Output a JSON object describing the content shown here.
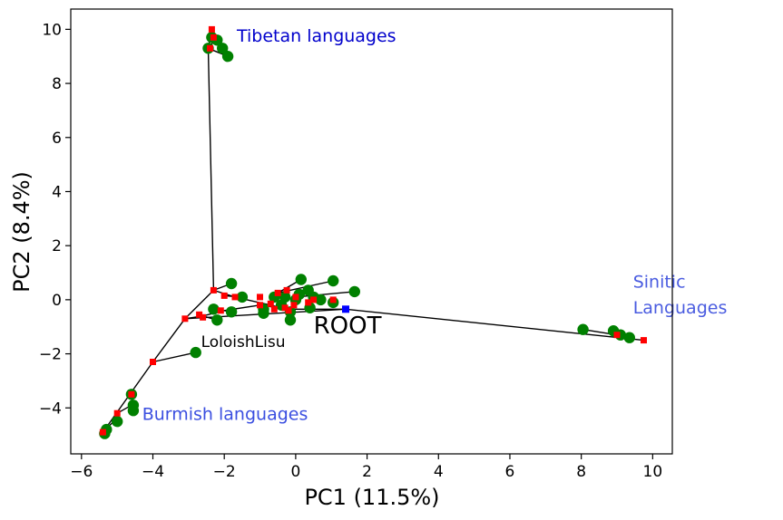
{
  "chart_data": {
    "type": "scatter",
    "title": "",
    "xlabel": "PC1 (11.5%)",
    "ylabel": "PC2 (8.4%)",
    "xlim": [
      -6.3,
      10.55
    ],
    "ylim": [
      -5.7,
      10.75
    ],
    "xticks": [
      -6,
      -4,
      -2,
      0,
      2,
      4,
      6,
      8,
      10
    ],
    "yticks": [
      -4,
      -2,
      0,
      2,
      4,
      6,
      8,
      10
    ],
    "xtick_labels": [
      "−6",
      "−4",
      "−2",
      "0",
      "2",
      "4",
      "6",
      "8",
      "10"
    ],
    "ytick_labels": [
      "−4",
      "−2",
      "0",
      "2",
      "4",
      "6",
      "8",
      "10"
    ],
    "grid": false,
    "colors": {
      "leaf": "#008000",
      "node": "#ff0000",
      "root": "#0000ff",
      "edge": "#000000"
    },
    "root": {
      "label": "ROOT",
      "x": 1.4,
      "y": -0.35
    },
    "internal_nodes": [
      {
        "x": -2.35,
        "y": 10.0
      },
      {
        "x": -2.3,
        "y": 9.7
      },
      {
        "x": -2.4,
        "y": 9.3
      },
      {
        "x": -2.3,
        "y": 0.35
      },
      {
        "x": -2.0,
        "y": 0.15
      },
      {
        "x": -1.7,
        "y": 0.1
      },
      {
        "x": -1.0,
        "y": 0.1
      },
      {
        "x": -0.5,
        "y": 0.25
      },
      {
        "x": -0.25,
        "y": 0.35
      },
      {
        "x": 0.0,
        "y": 0.1
      },
      {
        "x": 0.5,
        "y": 0.0
      },
      {
        "x": 1.05,
        "y": 0.0
      },
      {
        "x": -1.0,
        "y": -0.2
      },
      {
        "x": -0.7,
        "y": -0.15
      },
      {
        "x": -0.3,
        "y": -0.3
      },
      {
        "x": -0.05,
        "y": -0.2
      },
      {
        "x": 0.35,
        "y": -0.1
      },
      {
        "x": -0.6,
        "y": -0.35
      },
      {
        "x": -0.2,
        "y": -0.4
      },
      {
        "x": -2.7,
        "y": -0.55
      },
      {
        "x": -2.1,
        "y": -0.4
      },
      {
        "x": -3.1,
        "y": -0.7
      },
      {
        "x": -2.6,
        "y": -0.65
      },
      {
        "x": -4.0,
        "y": -2.3
      },
      {
        "x": -4.6,
        "y": -3.5
      },
      {
        "x": -5.0,
        "y": -4.2
      },
      {
        "x": -5.4,
        "y": -4.9
      },
      {
        "x": 9.0,
        "y": -1.3
      },
      {
        "x": 9.75,
        "y": -1.5
      }
    ],
    "edges": [
      [
        [
          -3.1,
          -0.7
        ],
        [
          1.4,
          -0.35
        ],
        [
          9.75,
          -1.5
        ]
      ],
      [
        [
          -2.45,
          9.3
        ],
        [
          -2.3,
          0.35
        ],
        [
          -1.7,
          0.1
        ],
        [
          -0.2,
          -0.35
        ],
        [
          1.4,
          -0.35
        ]
      ],
      [
        [
          -3.1,
          -0.7
        ],
        [
          -2.3,
          0.35
        ]
      ],
      [
        [
          -5.4,
          -4.9
        ],
        [
          -4.0,
          -2.3
        ],
        [
          -3.1,
          -0.7
        ]
      ],
      [
        [
          -4.0,
          -2.3
        ],
        [
          -2.8,
          -1.95
        ]
      ],
      [
        [
          -2.45,
          9.3
        ],
        [
          -2.35,
          10.0
        ]
      ],
      [
        [
          -2.45,
          9.3
        ],
        [
          -2.2,
          9.7
        ]
      ],
      [
        [
          -2.45,
          9.3
        ],
        [
          -1.9,
          9.0
        ]
      ],
      [
        [
          -2.3,
          0.35
        ],
        [
          -1.8,
          0.6
        ]
      ],
      [
        [
          -2.0,
          0.15
        ],
        [
          -1.5,
          0.1
        ]
      ],
      [
        [
          -3.1,
          -0.7
        ],
        [
          -2.6,
          -0.6
        ],
        [
          -2.0,
          -0.4
        ],
        [
          -1.0,
          -0.2
        ],
        [
          -0.2,
          -0.35
        ]
      ],
      [
        [
          -2.6,
          -0.6
        ],
        [
          -2.2,
          -0.75
        ]
      ],
      [
        [
          -2.0,
          -0.4
        ],
        [
          -1.8,
          -0.45
        ]
      ],
      [
        [
          -0.5,
          0.25
        ],
        [
          1.05,
          0.7
        ]
      ],
      [
        [
          -0.5,
          0.25
        ],
        [
          0.15,
          0.75
        ]
      ],
      [
        [
          0.0,
          0.1
        ],
        [
          1.65,
          0.3
        ]
      ],
      [
        [
          0.5,
          0.0
        ],
        [
          0.35,
          0.35
        ]
      ],
      [
        [
          -5.4,
          -4.9
        ],
        [
          -5.1,
          -4.5
        ]
      ],
      [
        [
          -5.0,
          -4.2
        ],
        [
          -4.6,
          -3.9
        ]
      ],
      [
        [
          -4.6,
          -3.5
        ],
        [
          -4.55,
          -4.1
        ]
      ],
      [
        [
          8.05,
          -1.1
        ],
        [
          9.0,
          -1.3
        ]
      ]
    ],
    "leaves": [
      {
        "x": -2.35,
        "y": 9.7
      },
      {
        "x": -2.2,
        "y": 9.6
      },
      {
        "x": -2.05,
        "y": 9.3
      },
      {
        "x": -1.9,
        "y": 9.0
      },
      {
        "x": -2.45,
        "y": 9.3
      },
      {
        "x": -1.8,
        "y": 0.6
      },
      {
        "x": -1.5,
        "y": 0.1
      },
      {
        "x": -2.3,
        "y": -0.35
      },
      {
        "x": -2.2,
        "y": -0.75
      },
      {
        "x": -1.8,
        "y": -0.45
      },
      {
        "x": -0.9,
        "y": -0.35
      },
      {
        "x": -0.9,
        "y": -0.5
      },
      {
        "x": -0.6,
        "y": 0.1
      },
      {
        "x": -0.4,
        "y": -0.2
      },
      {
        "x": -0.3,
        "y": 0.1
      },
      {
        "x": 0.0,
        "y": 0.0
      },
      {
        "x": 0.1,
        "y": 0.2
      },
      {
        "x": 0.15,
        "y": 0.75
      },
      {
        "x": 0.35,
        "y": 0.35
      },
      {
        "x": 0.5,
        "y": 0.1
      },
      {
        "x": 0.7,
        "y": 0.0
      },
      {
        "x": 1.05,
        "y": 0.7
      },
      {
        "x": 1.05,
        "y": -0.1
      },
      {
        "x": 1.65,
        "y": 0.3
      },
      {
        "x": -0.15,
        "y": -0.45
      },
      {
        "x": -0.15,
        "y": -0.75
      },
      {
        "x": 0.4,
        "y": -0.3
      },
      {
        "x": -2.8,
        "y": -1.95
      },
      {
        "x": -4.55,
        "y": -3.9
      },
      {
        "x": -4.55,
        "y": -4.1
      },
      {
        "x": -4.6,
        "y": -3.5
      },
      {
        "x": -5.0,
        "y": -4.5
      },
      {
        "x": -5.3,
        "y": -4.8
      },
      {
        "x": -5.35,
        "y": -4.95
      },
      {
        "x": 8.05,
        "y": -1.1
      },
      {
        "x": 8.9,
        "y": -1.15
      },
      {
        "x": 9.1,
        "y": -1.3
      },
      {
        "x": 9.35,
        "y": -1.4
      }
    ],
    "annotations": [
      {
        "text": "Tibetan languages",
        "x": -1.65,
        "y": 9.55,
        "color": "#0000cc",
        "size": 19
      },
      {
        "text": "Sinitic",
        "x": 9.45,
        "y": 0.45,
        "color": "#4a5ce0",
        "size": 19
      },
      {
        "text": "Languages",
        "x": 9.45,
        "y": -0.5,
        "color": "#4a5ce0",
        "size": 19
      },
      {
        "text": "ROOT",
        "x": 0.5,
        "y": -1.25,
        "color": "#000000",
        "size": 26
      },
      {
        "text": "LoloishLisu",
        "x": -2.65,
        "y": -1.75,
        "color": "#000000",
        "size": 17
      },
      {
        "text": "Burmish languages",
        "x": -4.3,
        "y": -4.45,
        "color": "#3b4fe0",
        "size": 19
      }
    ]
  }
}
